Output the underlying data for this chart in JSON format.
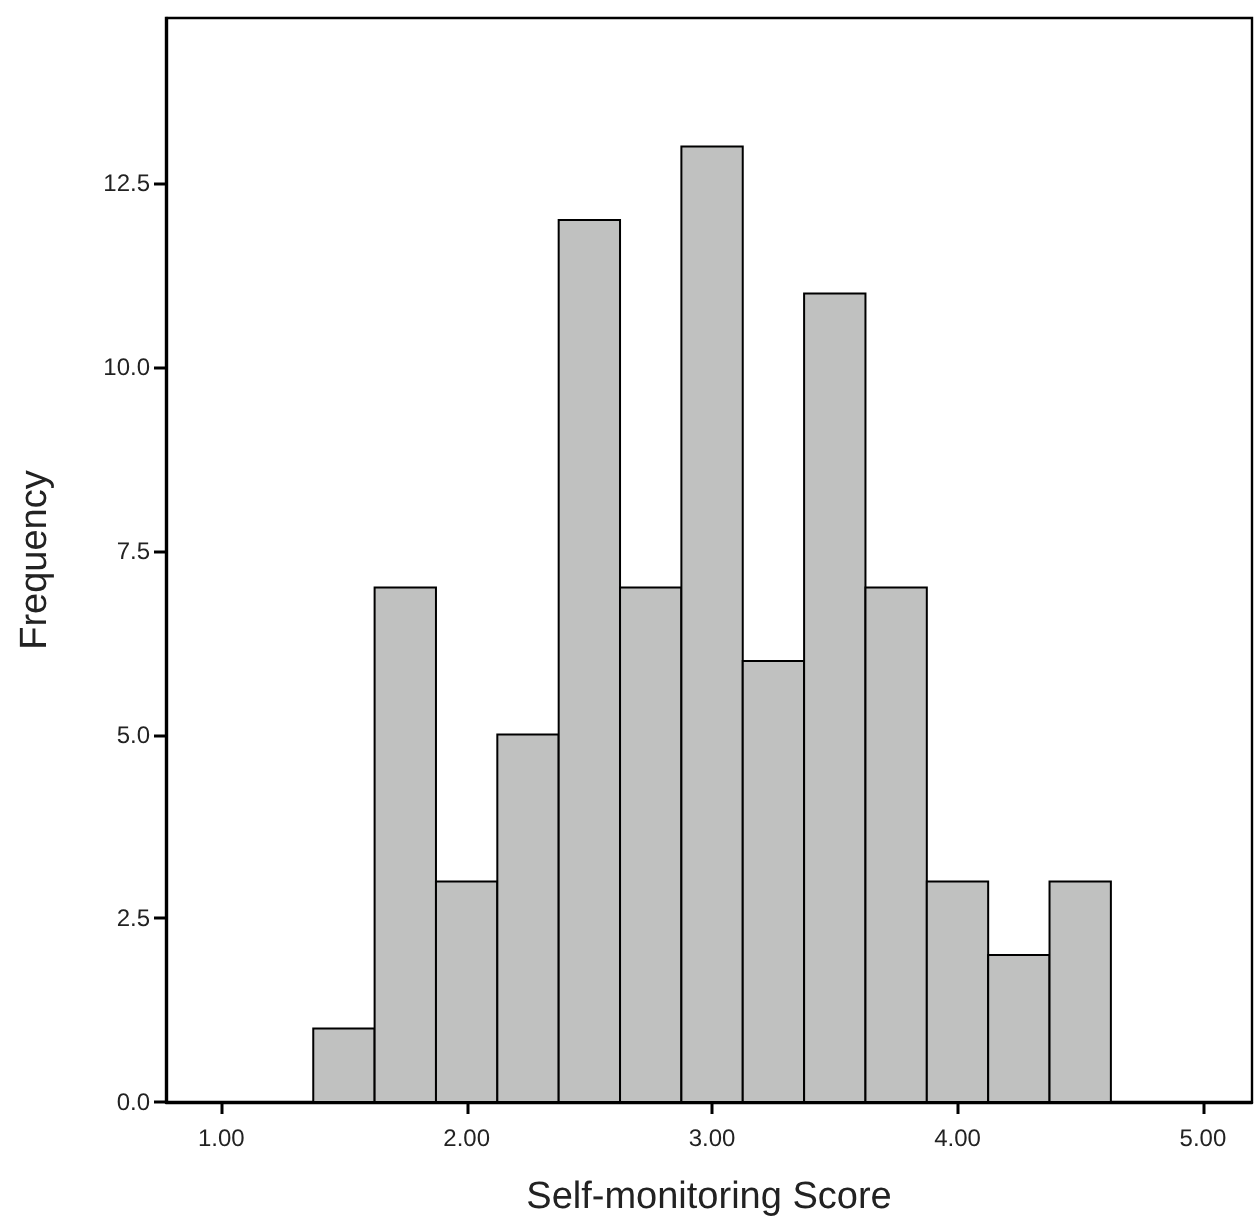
{
  "chart_data": {
    "type": "histogram",
    "xlabel": "Self-monitoring Score",
    "ylabel": "Frequency",
    "bins": [
      1.375,
      1.625,
      1.875,
      2.125,
      2.375,
      2.625,
      2.875,
      3.125,
      3.375,
      3.625,
      3.875,
      4.125,
      4.375,
      4.625
    ],
    "values": [
      1,
      7,
      3,
      5,
      12,
      7,
      13,
      6,
      11,
      7,
      3,
      2,
      3
    ],
    "color": "#c0c1c0",
    "xlim": [
      0.775,
      5.2
    ],
    "xticks": [
      {
        "value": 1,
        "label": "1.00"
      },
      {
        "value": 2,
        "label": "2.00"
      },
      {
        "value": 3,
        "label": "3.00"
      },
      {
        "value": 4,
        "label": "4.00"
      },
      {
        "value": 5,
        "label": "5.00"
      }
    ],
    "ylim": [
      0,
      14.75
    ],
    "yticks": [
      {
        "value": 0,
        "label": "0.0"
      },
      {
        "value": 2.5,
        "label": "2.5"
      },
      {
        "value": 5,
        "label": "5.0"
      },
      {
        "value": 7.5,
        "label": "7.5"
      },
      {
        "value": 10,
        "label": "10.0"
      },
      {
        "value": 12.5,
        "label": "12.5"
      }
    ],
    "grid": false
  }
}
